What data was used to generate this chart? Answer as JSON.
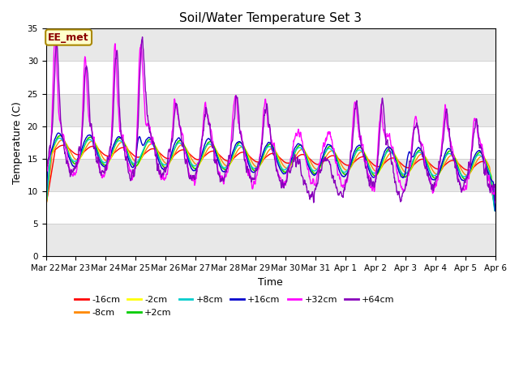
{
  "title": "Soil/Water Temperature Set 3",
  "xlabel": "Time",
  "ylabel": "Temperature (C)",
  "ylim": [
    0,
    35
  ],
  "yticks": [
    0,
    5,
    10,
    15,
    20,
    25,
    30,
    35
  ],
  "plot_bg_color": "#ffffff",
  "fig_bg_color": "#ffffff",
  "grid_color": "#dddddd",
  "watermark_text": "EE_met",
  "watermark_fgcolor": "#8B0000",
  "watermark_bgcolor": "#ffffcc",
  "watermark_edgecolor": "#aa8800",
  "series": [
    {
      "label": "-16cm",
      "color": "#ff0000"
    },
    {
      "label": "-8cm",
      "color": "#ff8800"
    },
    {
      "label": "-2cm",
      "color": "#ffff00"
    },
    {
      "label": "+2cm",
      "color": "#00cc00"
    },
    {
      "label": "+8cm",
      "color": "#00cccc"
    },
    {
      "label": "+16cm",
      "color": "#0000cc"
    },
    {
      "label": "+32cm",
      "color": "#ff00ff"
    },
    {
      "label": "+64cm",
      "color": "#8800bb"
    }
  ],
  "n_points": 1440,
  "x_start": 0,
  "x_end": 15,
  "x_tick_positions": [
    0,
    1,
    2,
    3,
    4,
    5,
    6,
    7,
    8,
    9,
    10,
    11,
    12,
    13,
    14,
    15
  ],
  "x_tick_labels": [
    "Mar 22",
    "Mar 23",
    "Mar 24",
    "Mar 25",
    "Mar 26",
    "Mar 27",
    "Mar 28",
    "Mar 29",
    "Mar 30",
    "Mar 31",
    "Apr 1",
    "Apr 2",
    "Apr 3",
    "Apr 4",
    "Apr 5",
    "Apr 6"
  ]
}
